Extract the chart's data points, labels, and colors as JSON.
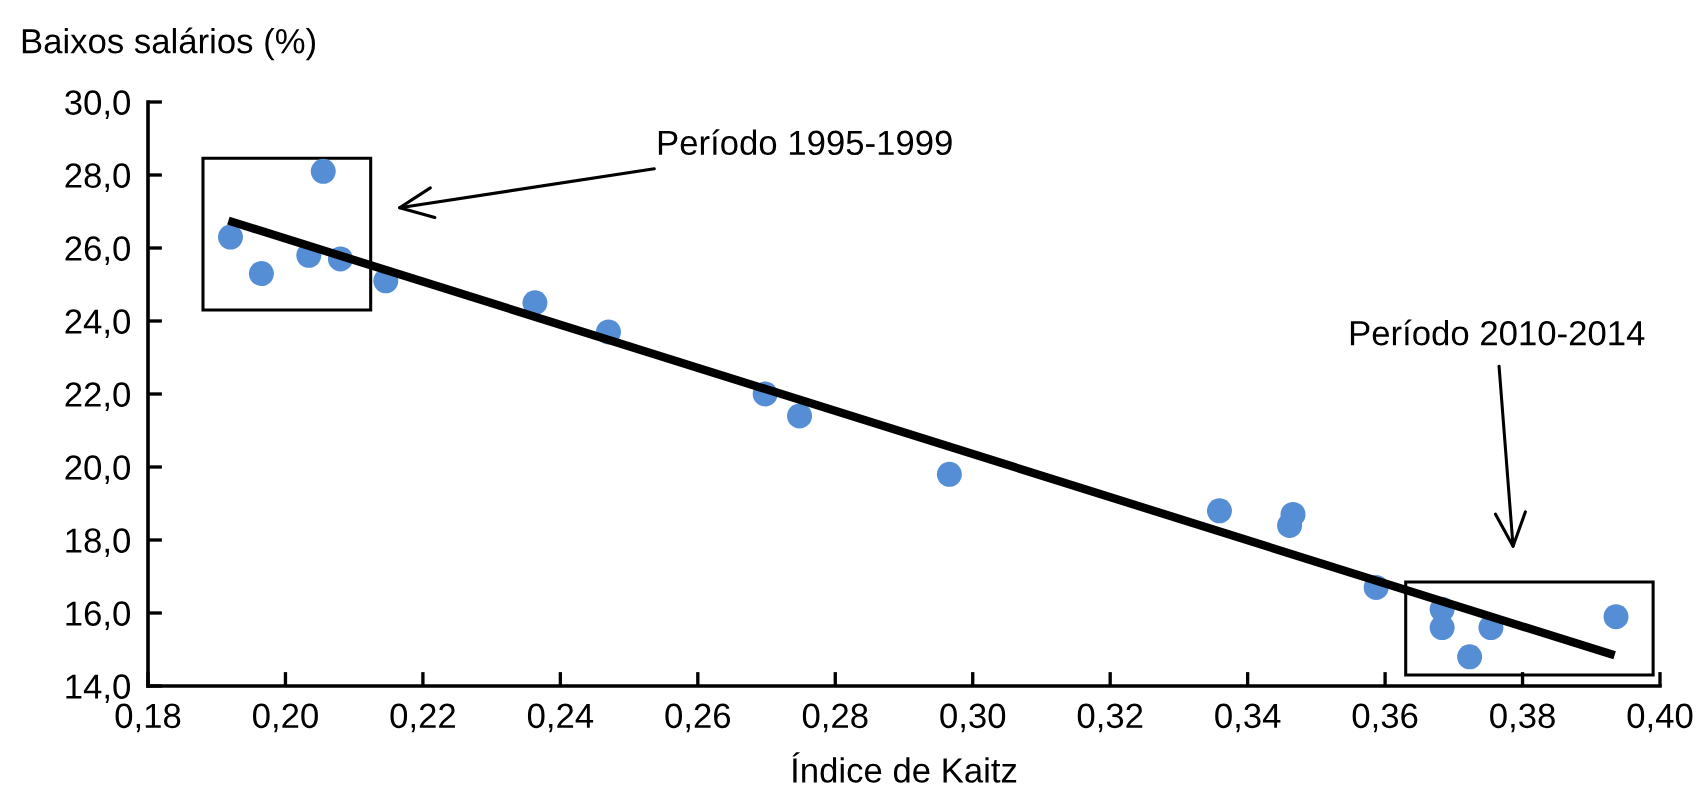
{
  "chart_data": {
    "type": "scatter",
    "xlabel": "Índice de Kaitz",
    "ylabel": "Baixos salários (%)",
    "xlim": [
      0.18,
      0.4
    ],
    "ylim": [
      14.0,
      30.0
    ],
    "xticks": [
      {
        "value": 0.18,
        "label": "0,18"
      },
      {
        "value": 0.2,
        "label": "0,20"
      },
      {
        "value": 0.22,
        "label": "0,22"
      },
      {
        "value": 0.24,
        "label": "0,24"
      },
      {
        "value": 0.26,
        "label": "0,26"
      },
      {
        "value": 0.28,
        "label": "0,28"
      },
      {
        "value": 0.3,
        "label": "0,30"
      },
      {
        "value": 0.32,
        "label": "0,32"
      },
      {
        "value": 0.34,
        "label": "0,34"
      },
      {
        "value": 0.36,
        "label": "0,36"
      },
      {
        "value": 0.38,
        "label": "0,38"
      },
      {
        "value": 0.4,
        "label": "0,40"
      }
    ],
    "yticks": [
      {
        "value": 14,
        "label": "14,0"
      },
      {
        "value": 16,
        "label": "16,0"
      },
      {
        "value": 18,
        "label": "18,0"
      },
      {
        "value": 20,
        "label": "20,0"
      },
      {
        "value": 22,
        "label": "22,0"
      },
      {
        "value": 24,
        "label": "24,0"
      },
      {
        "value": 26,
        "label": "26,0"
      },
      {
        "value": 28,
        "label": "28,0"
      },
      {
        "value": 30,
        "label": "30,0"
      }
    ],
    "grid": false,
    "legend": false,
    "marker": "circle",
    "series": [
      {
        "color": "#558ed5",
        "x": [
          0.192,
          0.1965,
          0.2055,
          0.2034,
          0.208,
          0.2146,
          0.2363,
          0.247,
          0.2698,
          0.2748,
          0.2966,
          0.3359,
          0.3466,
          0.3461,
          0.3587,
          0.3683,
          0.3683,
          0.3754,
          0.3723,
          0.3936
        ],
        "values": [
          26.3,
          25.3,
          28.1,
          25.8,
          25.7,
          25.1,
          24.5,
          23.7,
          22.0,
          21.4,
          19.8,
          18.8,
          18.7,
          18.4,
          16.7,
          16.1,
          15.6,
          15.6,
          14.8,
          15.9
        ]
      },
      {
        "type": "line",
        "color": "#000000",
        "marker": "none",
        "line_style": "solid",
        "x": [
          0.1917,
          0.3934
        ],
        "values": [
          26.75,
          14.84
        ]
      }
    ],
    "annotations": [
      "Período 1995-1999",
      "Período 2010-2014"
    ]
  }
}
